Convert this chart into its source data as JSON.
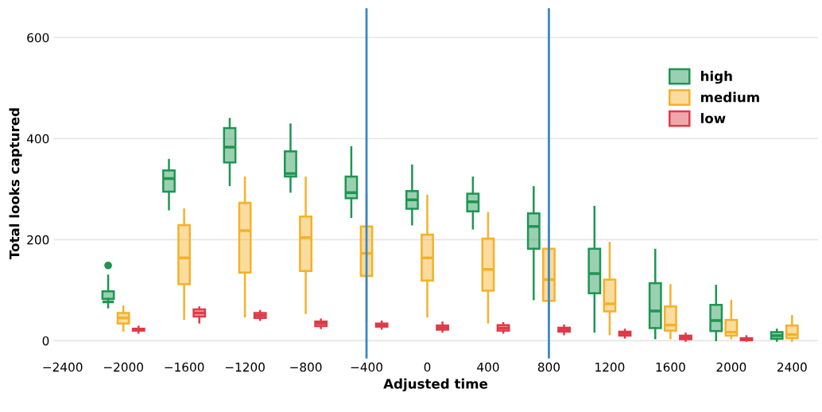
{
  "chart_data": {
    "type": "box",
    "xlabel": "Adjusted time",
    "ylabel": "Total looks captured",
    "xlim": [
      -2460,
      2570
    ],
    "ylim": [
      -35,
      658
    ],
    "xticks": [
      {
        "value": -2400,
        "label": "−2400"
      },
      {
        "value": -2000,
        "label": "−2000"
      },
      {
        "value": -1600,
        "label": "−1600"
      },
      {
        "value": -1200,
        "label": "−1200"
      },
      {
        "value": -800,
        "label": "−800"
      },
      {
        "value": -400,
        "label": "−400"
      },
      0,
      400,
      800,
      1200,
      1600,
      2000,
      2400
    ],
    "yticks": [
      0,
      200,
      400,
      600
    ],
    "grid": "y",
    "legend": "top right",
    "ref_lines": [
      {
        "axis": "x",
        "value": -400,
        "color": "#3a87c8"
      },
      {
        "axis": "x",
        "value": 800,
        "color": "#3a87c8"
      }
    ],
    "series": [
      {
        "name": "high",
        "color": "#1e9652",
        "x": [
          -2100,
          -1700,
          -1300,
          -900,
          -500,
          -100,
          300,
          700,
          1100,
          1500,
          1900,
          2300
        ],
        "boxes": [
          {
            "low": 66,
            "q1": 83,
            "median": 77,
            "q3": 98,
            "high": 129,
            "outliers": [
              149
            ]
          },
          {
            "low": 260,
            "q1": 295,
            "median": 321,
            "q3": 337,
            "high": 358
          },
          {
            "low": 308,
            "q1": 353,
            "median": 383,
            "q3": 421,
            "high": 439
          },
          {
            "low": 295,
            "q1": 325,
            "median": 331,
            "q3": 375,
            "high": 428
          },
          {
            "low": 245,
            "q1": 282,
            "median": 293,
            "q3": 325,
            "high": 383
          },
          {
            "low": 230,
            "q1": 261,
            "median": 279,
            "q3": 296,
            "high": 347
          },
          {
            "low": 222,
            "q1": 256,
            "median": 275,
            "q3": 291,
            "high": 323
          },
          {
            "low": 82,
            "q1": 182,
            "median": 226,
            "q3": 252,
            "high": 304
          },
          {
            "low": 18,
            "q1": 94,
            "median": 133,
            "q3": 182,
            "high": 265
          },
          {
            "low": 5,
            "q1": 25,
            "median": 59,
            "q3": 114,
            "high": 180
          },
          {
            "low": 1,
            "q1": 19,
            "median": 40,
            "q3": 71,
            "high": 109
          },
          {
            "low": 0,
            "q1": 4,
            "median": 10,
            "q3": 17,
            "high": 22
          }
        ]
      },
      {
        "name": "medium",
        "color": "#f5b12a",
        "x": [
          -2000,
          -1600,
          -1200,
          -800,
          -400,
          0,
          400,
          800,
          1200,
          1600,
          2000,
          2400
        ],
        "boxes": [
          {
            "low": 20,
            "q1": 34,
            "median": 45,
            "q3": 55,
            "high": 68
          },
          {
            "low": 43,
            "q1": 112,
            "median": 164,
            "q3": 229,
            "high": 260
          },
          {
            "low": 48,
            "q1": 135,
            "median": 218,
            "q3": 273,
            "high": 323
          },
          {
            "low": 55,
            "q1": 138,
            "median": 204,
            "q3": 246,
            "high": 323
          },
          {
            "low": 38,
            "q1": 128,
            "median": 173,
            "q3": 226,
            "high": 290
          },
          {
            "low": 48,
            "q1": 119,
            "median": 164,
            "q3": 210,
            "high": 287
          },
          {
            "low": 36,
            "q1": 99,
            "median": 141,
            "q3": 202,
            "high": 253
          },
          {
            "low": 44,
            "q1": 79,
            "median": 121,
            "q3": 182,
            "high": 222
          },
          {
            "low": 13,
            "q1": 58,
            "median": 73,
            "q3": 121,
            "high": 194
          },
          {
            "low": 5,
            "q1": 20,
            "median": 31,
            "q3": 68,
            "high": 110
          },
          {
            "low": 5,
            "q1": 10,
            "median": 17,
            "q3": 41,
            "high": 79
          },
          {
            "low": 0,
            "q1": 5,
            "median": 12,
            "q3": 30,
            "high": 49
          }
        ]
      },
      {
        "name": "low",
        "color": "#e03a48",
        "x": [
          -1900,
          -1500,
          -1100,
          -700,
          -300,
          100,
          500,
          900,
          1300,
          1700,
          2100
        ],
        "boxes": [
          {
            "low": 16,
            "q1": 20,
            "median": 22,
            "q3": 24,
            "high": 28
          },
          {
            "low": 36,
            "q1": 48,
            "median": 55,
            "q3": 62,
            "high": 66
          },
          {
            "low": 41,
            "q1": 45,
            "median": 50,
            "q3": 55,
            "high": 59
          },
          {
            "low": 25,
            "q1": 29,
            "median": 34,
            "q3": 38,
            "high": 42
          },
          {
            "low": 24,
            "q1": 28,
            "median": 31,
            "q3": 34,
            "high": 38
          },
          {
            "low": 18,
            "q1": 22,
            "median": 26,
            "q3": 30,
            "high": 36
          },
          {
            "low": 16,
            "q1": 20,
            "median": 25,
            "q3": 31,
            "high": 35
          },
          {
            "low": 13,
            "q1": 18,
            "median": 22,
            "q3": 26,
            "high": 30
          },
          {
            "low": 6,
            "q1": 10,
            "median": 14,
            "q3": 18,
            "high": 22
          },
          {
            "low": 0,
            "q1": 3,
            "median": 6,
            "q3": 10,
            "high": 14
          },
          {
            "low": 0,
            "q1": 1,
            "median": 3,
            "q3": 5,
            "high": 9
          }
        ]
      }
    ]
  }
}
